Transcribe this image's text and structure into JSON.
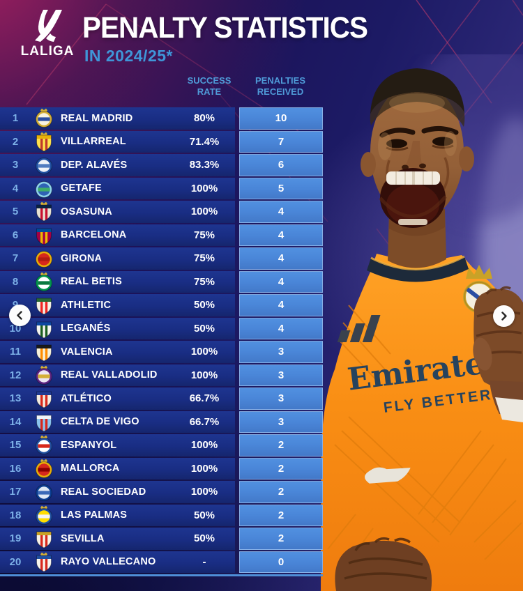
{
  "header": {
    "league": "LALIGA",
    "title": "PENALTY STATISTICS",
    "subtitle": "IN 2024/25*"
  },
  "columns": {
    "success": "SUCCESS RATE",
    "penalties": "PENALTIES RECEIVED"
  },
  "player": {
    "sponsor": "Emirates",
    "slogan": "FLY BETTER"
  },
  "colors": {
    "row_bg": "#192d83",
    "penalty_cell": "#4a86d8",
    "accent_blue_text": "#4f9bd8",
    "rank_text": "#7db1e8",
    "title_text": "#ffffff",
    "magenta_corner": "#a0215c",
    "jersey_orange": "#f88c14"
  },
  "chart_data": {
    "type": "table",
    "title": "PENALTY STATISTICS IN 2024/25*",
    "columns": [
      "RANK",
      "TEAM",
      "SUCCESS RATE",
      "PENALTIES RECEIVED"
    ],
    "categories": [
      "REAL MADRID",
      "VILLARREAL",
      "DEP. ALAVÉS",
      "GETAFE",
      "OSASUNA",
      "BARCELONA",
      "GIRONA",
      "REAL BETIS",
      "ATHLETIC",
      "LEGANÉS",
      "VALENCIA",
      "REAL VALLADOLID",
      "ATLÉTICO",
      "CELTA DE VIGO",
      "ESPANYOL",
      "MALLORCA",
      "REAL SOCIEDAD",
      "LAS PALMAS",
      "SEVILLA",
      "RAYO VALLECANO"
    ],
    "series": [
      {
        "name": "SUCCESS RATE",
        "values": [
          "80%",
          "71.4%",
          "83.3%",
          "100%",
          "100%",
          "75%",
          "75%",
          "75%",
          "50%",
          "50%",
          "100%",
          "100%",
          "66.7%",
          "66.7%",
          "100%",
          "100%",
          "100%",
          "50%",
          "50%",
          "-"
        ]
      },
      {
        "name": "PENALTIES RECEIVED",
        "values": [
          10,
          7,
          6,
          5,
          4,
          4,
          4,
          4,
          4,
          4,
          3,
          3,
          3,
          3,
          2,
          2,
          2,
          2,
          2,
          0
        ]
      }
    ]
  },
  "table_rows": [
    {
      "rank": "1",
      "team": "REAL MADRID",
      "success": "80%",
      "penalties": "10",
      "crest": {
        "shape": "circle",
        "colors": [
          "#f8f3e0",
          "#d4af37",
          "#2b4ea2"
        ],
        "crown": true
      }
    },
    {
      "rank": "2",
      "team": "VILLARREAL",
      "success": "71.4%",
      "penalties": "7",
      "crest": {
        "shape": "shield",
        "colors": [
          "#ffe14d",
          "#c0392b",
          "#e8b10a"
        ],
        "crown": true
      }
    },
    {
      "rank": "3",
      "team": "DEP. ALAVÉS",
      "success": "83.3%",
      "penalties": "6",
      "crest": {
        "shape": "circle",
        "colors": [
          "#eef2f8",
          "#1f4fa0",
          "#4f7bc0"
        ],
        "crown": false
      }
    },
    {
      "rank": "4",
      "team": "GETAFE",
      "success": "100%",
      "penalties": "5",
      "crest": {
        "shape": "circle",
        "colors": [
          "#2f62b4",
          "#8fd4ec",
          "#3fae6a"
        ],
        "crown": false
      }
    },
    {
      "rank": "5",
      "team": "OSASUNA",
      "success": "100%",
      "penalties": "4",
      "crest": {
        "shape": "shield",
        "colors": [
          "#e8e2d4",
          "#c8102e",
          "#0a2342"
        ],
        "crown": true
      }
    },
    {
      "rank": "6",
      "team": "BARCELONA",
      "success": "75%",
      "penalties": "4",
      "crest": {
        "shape": "shield",
        "colors": [
          "#a50044",
          "#edbb00",
          "#004d98"
        ],
        "crown": false
      }
    },
    {
      "rank": "7",
      "team": "GIRONA",
      "success": "75%",
      "penalties": "4",
      "crest": {
        "shape": "circle",
        "colors": [
          "#d7281c",
          "#e8b10a",
          "#b01c12"
        ],
        "crown": false
      }
    },
    {
      "rank": "8",
      "team": "REAL BETIS",
      "success": "75%",
      "penalties": "4",
      "crest": {
        "shape": "circle",
        "colors": [
          "#ffffff",
          "#00954c",
          "#0a7a40"
        ],
        "crown": true
      }
    },
    {
      "rank": "9",
      "team": "ATHLETIC",
      "success": "50%",
      "penalties": "4",
      "crest": {
        "shape": "shield",
        "colors": [
          "#f4f0e6",
          "#ee2523",
          "#2a6b35"
        ],
        "crown": false
      }
    },
    {
      "rank": "10",
      "team": "LEGANÉS",
      "success": "50%",
      "penalties": "4",
      "crest": {
        "shape": "shield",
        "colors": [
          "#f4f4f0",
          "#1b5e20",
          "#0d47a1"
        ],
        "crown": false
      }
    },
    {
      "rank": "11",
      "team": "VALENCIA",
      "success": "100%",
      "penalties": "3",
      "crest": {
        "shape": "shield",
        "colors": [
          "#f6f1dc",
          "#ff8c00",
          "#1a1a1a"
        ],
        "crown": false
      }
    },
    {
      "rank": "12",
      "team": "REAL VALLADOLID",
      "success": "100%",
      "penalties": "3",
      "crest": {
        "shape": "circle",
        "colors": [
          "#ece6f2",
          "#5c2483",
          "#d4af37"
        ],
        "crown": true
      }
    },
    {
      "rank": "13",
      "team": "ATLÉTICO",
      "success": "66.7%",
      "penalties": "3",
      "crest": {
        "shape": "shield",
        "colors": [
          "#f2ece0",
          "#d7281c",
          "#1f3a93"
        ],
        "crown": false
      }
    },
    {
      "rank": "14",
      "team": "CELTA DE VIGO",
      "success": "66.7%",
      "penalties": "3",
      "crest": {
        "shape": "shield",
        "colors": [
          "#8ac3ee",
          "#d7281c",
          "#f0f4f8"
        ],
        "crown": false
      }
    },
    {
      "rank": "15",
      "team": "ESPANYOL",
      "success": "100%",
      "penalties": "2",
      "crest": {
        "shape": "circle",
        "colors": [
          "#ffffff",
          "#1f4fa0",
          "#d7281c"
        ],
        "crown": true
      }
    },
    {
      "rank": "16",
      "team": "MALLORCA",
      "success": "100%",
      "penalties": "2",
      "crest": {
        "shape": "circle",
        "colors": [
          "#d7281c",
          "#e8b10a",
          "#8b0000"
        ],
        "crown": true
      }
    },
    {
      "rank": "17",
      "team": "REAL SOCIEDAD",
      "success": "100%",
      "penalties": "2",
      "crest": {
        "shape": "circle",
        "colors": [
          "#dfe8f4",
          "#0b3d91",
          "#3a69b8"
        ],
        "crown": false
      }
    },
    {
      "rank": "18",
      "team": "LAS PALMAS",
      "success": "50%",
      "penalties": "2",
      "crest": {
        "shape": "circle",
        "colors": [
          "#ffdd00",
          "#1f4fa0",
          "#f4f4f4"
        ],
        "crown": true
      }
    },
    {
      "rank": "19",
      "team": "SEVILLA",
      "success": "50%",
      "penalties": "2",
      "crest": {
        "shape": "shield",
        "colors": [
          "#f6f2e8",
          "#d7281c",
          "#c9a227"
        ],
        "crown": false
      }
    },
    {
      "rank": "20",
      "team": "RAYO VALLECANO",
      "success": "-",
      "penalties": "0",
      "crest": {
        "shape": "shield",
        "colors": [
          "#f6f4ee",
          "#d7281c",
          "#1f4fa0"
        ],
        "crown": true
      }
    }
  ]
}
